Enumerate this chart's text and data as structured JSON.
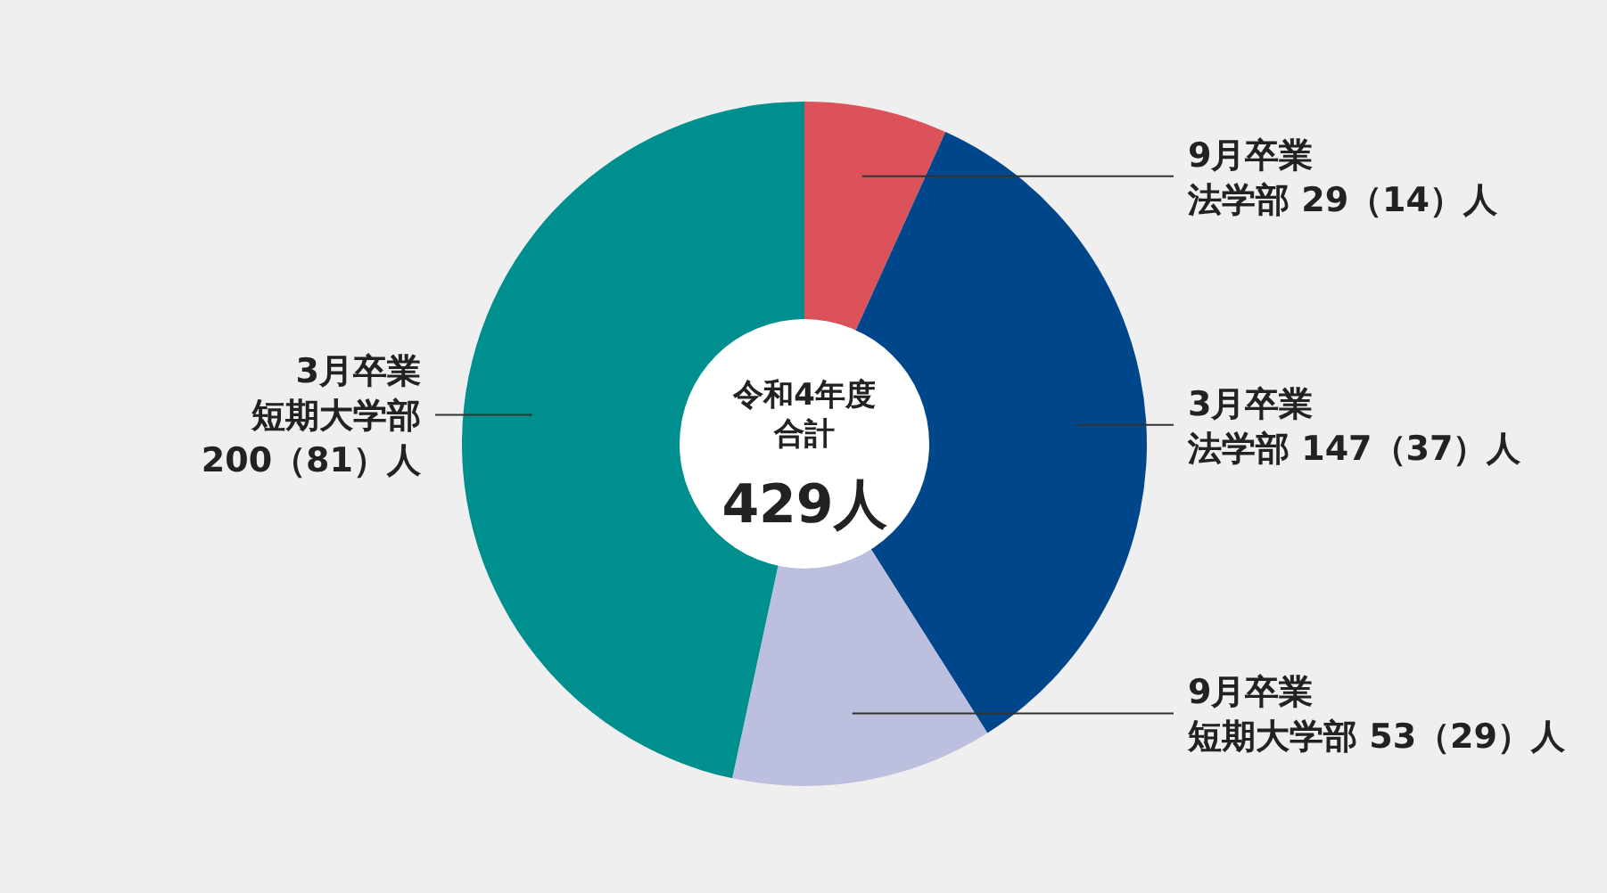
{
  "chart_data": {
    "type": "donut",
    "title": "令和4年度合計",
    "annotations": [
      "429人"
    ],
    "categories": [
      "9月卒業法学部",
      "3月卒業法学部",
      "9月卒業短期大学部",
      "3月卒業短期大学部"
    ],
    "values": [
      29,
      147,
      53,
      200
    ],
    "value_labels": [
      "29（14）人",
      "147（37）人",
      "53（29）人",
      "200（81）人"
    ],
    "colors": [
      "#db525a",
      "#00468b",
      "#bcbfdd",
      "#008f8f"
    ]
  }
}
